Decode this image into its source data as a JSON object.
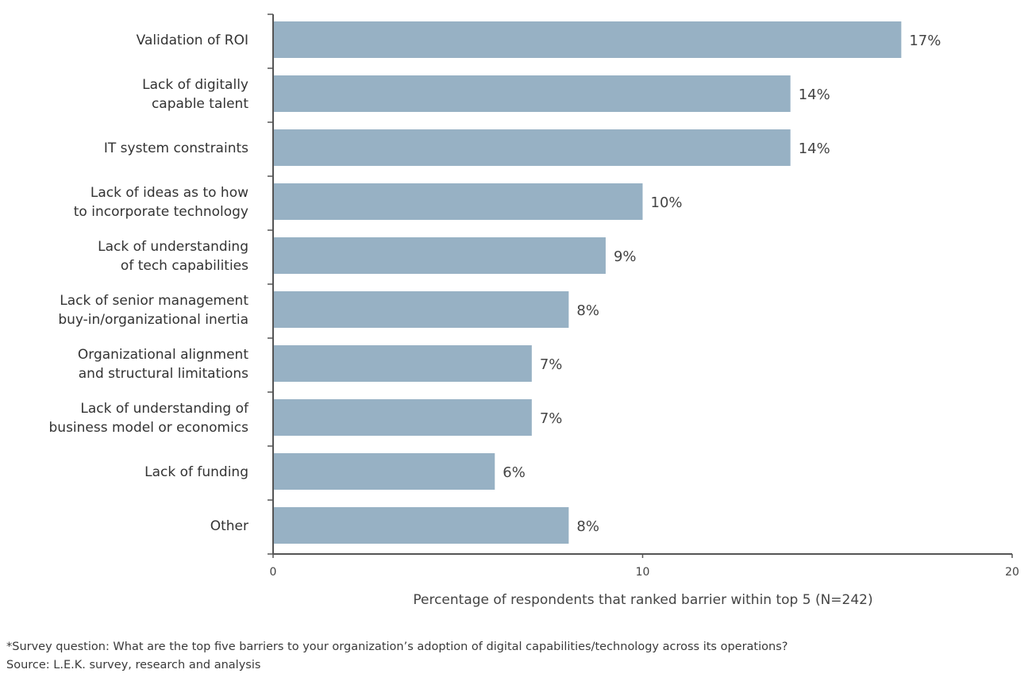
{
  "chart_data": {
    "type": "bar",
    "orientation": "horizontal",
    "categories": [
      "Validation of ROI",
      "Lack of digitally\ncapable talent",
      "IT system constraints",
      "Lack of ideas as to how\nto incorporate technology",
      "Lack of understanding\nof tech capabilities",
      "Lack of senior management\nbuy-in/organizational inertia",
      "Organizational alignment\nand structural limitations",
      "Lack of understanding of\nbusiness model or economics",
      "Lack of funding",
      "Other"
    ],
    "values": [
      17,
      14,
      14,
      10,
      9,
      8,
      7,
      7,
      6,
      8
    ],
    "data_labels": [
      "17%",
      "14%",
      "14%",
      "10%",
      "9%",
      "8%",
      "7%",
      "7%",
      "6%",
      "8%"
    ],
    "xlabel": "Percentage of respondents that ranked barrier within top 5 (N=242)",
    "xlim": [
      0,
      20
    ],
    "xticks": [
      0,
      10,
      20
    ],
    "xtick_labels": [
      "0",
      "10",
      "20"
    ],
    "grid": false,
    "bar_color": "#97b1c4"
  },
  "footnote": "*Survey question: What are the top five barriers to your organization’s adoption of digital capabilities/technology across its operations?",
  "source": "Source: L.E.K. survey, research and analysis"
}
